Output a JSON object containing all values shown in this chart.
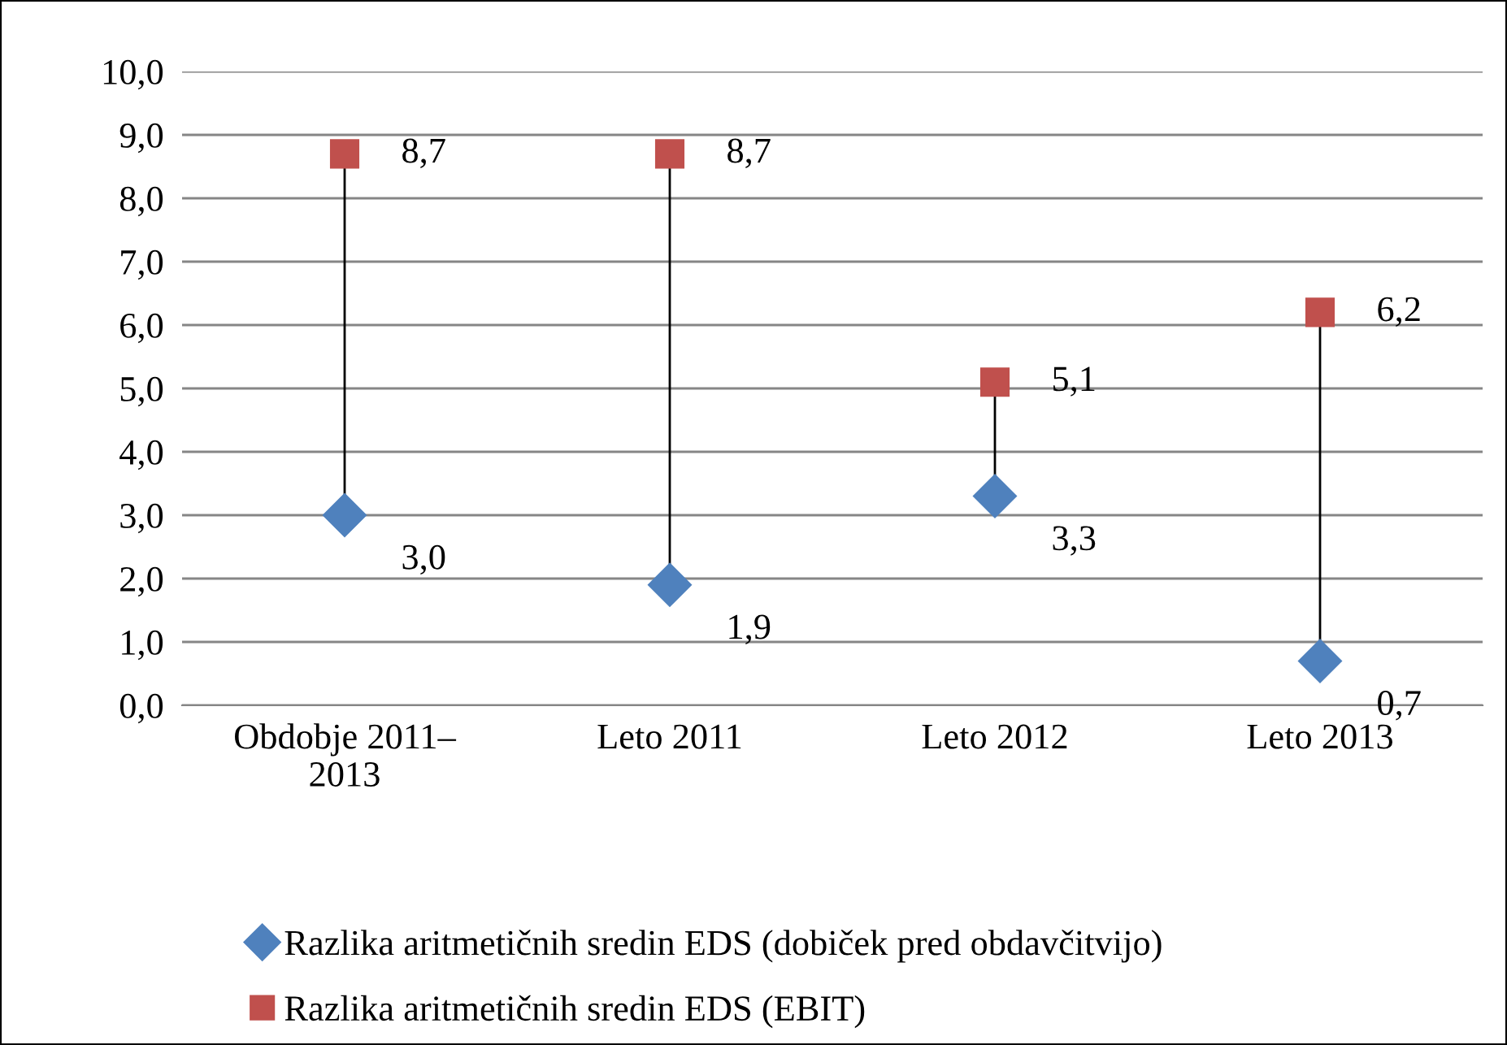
{
  "chart_data": {
    "type": "scatter",
    "categories": [
      "Obdobje 2011–\n2013",
      "Leto 2011",
      "Leto 2012",
      "Leto 2013"
    ],
    "series": [
      {
        "name": "Razlika aritmetičnih sredin EDS (dobiček pred obdavčitvijo)",
        "color": "#4f81bd",
        "marker": "diamond",
        "values": [
          3.0,
          1.9,
          3.3,
          0.7
        ],
        "value_labels": [
          "3,0",
          "1,9",
          "3,3",
          "0,7"
        ]
      },
      {
        "name": "Razlika aritmetičnih sredin EDS (EBIT)",
        "color": "#c0504d",
        "marker": "square",
        "values": [
          8.7,
          8.7,
          5.1,
          6.2
        ],
        "value_labels": [
          "8,7",
          "8,7",
          "5,1",
          "6,2"
        ]
      }
    ],
    "ylim": [
      0,
      10
    ],
    "yticks": [
      {
        "value": 0,
        "label": "0,0"
      },
      {
        "value": 1,
        "label": "1,0"
      },
      {
        "value": 2,
        "label": "2,0"
      },
      {
        "value": 3,
        "label": "3,0"
      },
      {
        "value": 4,
        "label": "4,0"
      },
      {
        "value": 5,
        "label": "5,0"
      },
      {
        "value": 6,
        "label": "6,0"
      },
      {
        "value": 7,
        "label": "7,0"
      },
      {
        "value": 8,
        "label": "8,0"
      },
      {
        "value": 9,
        "label": "9,0"
      },
      {
        "value": 10,
        "label": "10,0"
      }
    ],
    "grid": "y",
    "legend": "bottom"
  }
}
